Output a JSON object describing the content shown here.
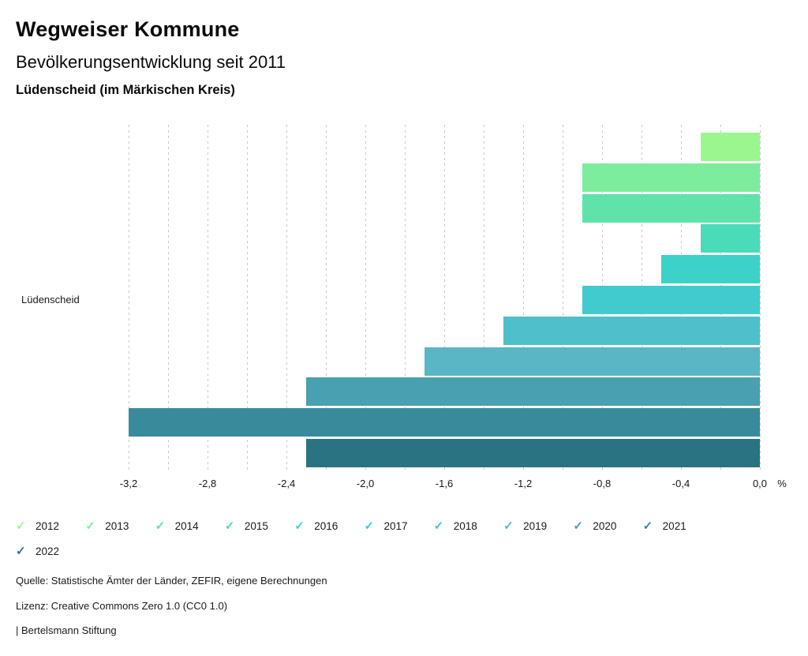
{
  "header": {
    "title": "Wegweiser Kommune",
    "subtitle": "Bevölkerungsentwicklung seit 2011",
    "region": "Lüdenscheid (im Märkischen Kreis)"
  },
  "chart_data": {
    "type": "bar",
    "orientation": "horizontal",
    "group_label": "Lüdenscheid",
    "categories": [
      "2012",
      "2013",
      "2014",
      "2015",
      "2016",
      "2017",
      "2018",
      "2019",
      "2020",
      "2021",
      "2022"
    ],
    "values": [
      -0.3,
      -0.9,
      -0.9,
      -0.3,
      -0.5,
      -0.9,
      -1.3,
      -1.7,
      -2.3,
      -3.2,
      -2.3
    ],
    "colors": [
      "#9BF68F",
      "#7DEC9D",
      "#5FE3AA",
      "#4ADBB9",
      "#3DD2C9",
      "#41CBCE",
      "#4EBFCB",
      "#5AB5C5",
      "#49A0B0",
      "#398B9C",
      "#2A7382"
    ],
    "unit": "%",
    "xlim": [
      -3.2,
      0.0
    ],
    "grid_step": 0.2,
    "x_ticks": [
      {
        "value": -3.2,
        "label": "-3,2"
      },
      {
        "value": -2.8,
        "label": "-2,8"
      },
      {
        "value": -2.4,
        "label": "-2,4"
      },
      {
        "value": -2.0,
        "label": "-2,0"
      },
      {
        "value": -1.6,
        "label": "-1,6"
      },
      {
        "value": -1.2,
        "label": "-1,2"
      },
      {
        "value": -0.8,
        "label": "-0,8"
      },
      {
        "value": -0.4,
        "label": "-0,4"
      },
      {
        "value": 0.0,
        "label": "0,0"
      }
    ],
    "grid": true,
    "legend_position": "bottom",
    "legend_icon": "check"
  },
  "footer": {
    "source": "Quelle: Statistische Ämter der Länder, ZEFIR, eigene Berechnungen",
    "license": "Lizenz: Creative Commons Zero 1.0 (CC0 1.0)",
    "branding": "| Bertelsmann Stiftung"
  }
}
